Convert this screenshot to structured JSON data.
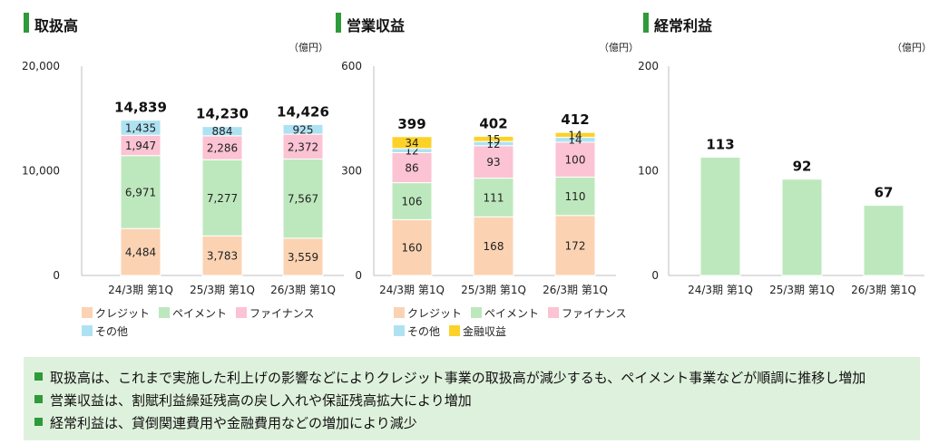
{
  "colors": {
    "credit": "#fbd3b3",
    "payment": "#bde8bd",
    "finance": "#fbc3d3",
    "other": "#aee2f2",
    "kinyu": "#fcd229",
    "ordinary": "#bde8bd",
    "axis": "#bfbfbf",
    "accent": "#2e9a3a"
  },
  "panels": [
    {
      "title": "取扱高",
      "unit": "（億円）"
    },
    {
      "title": "営業収益",
      "unit": "（億円）"
    },
    {
      "title": "経常利益",
      "unit": "（億円）"
    }
  ],
  "chart_data": [
    {
      "type": "bar",
      "stacked": true,
      "title": "取扱高",
      "unit": "（億円）",
      "categories": [
        "24/3期 第1Q",
        "25/3期 第1Q",
        "26/3期 第1Q"
      ],
      "ylim": [
        0,
        20000
      ],
      "yticks": [
        "0",
        "10,000",
        "20,000"
      ],
      "totals": [
        "14,839",
        "14,230",
        "14,426"
      ],
      "series": [
        {
          "name": "クレジット",
          "key": "credit",
          "values": [
            4484,
            3783,
            3559
          ],
          "labels": [
            "4,484",
            "3,783",
            "3,559"
          ]
        },
        {
          "name": "ペイメント",
          "key": "payment",
          "values": [
            6971,
            7277,
            7567
          ],
          "labels": [
            "6,971",
            "7,277",
            "7,567"
          ]
        },
        {
          "name": "ファイナンス",
          "key": "finance",
          "values": [
            1947,
            2286,
            2372
          ],
          "labels": [
            "1,947",
            "2,286",
            "2,372"
          ]
        },
        {
          "name": "その他",
          "key": "other",
          "values": [
            1435,
            884,
            925
          ],
          "labels": [
            "1,435",
            "884",
            "925"
          ]
        }
      ],
      "legend": "bottom",
      "grid": false
    },
    {
      "type": "bar",
      "stacked": true,
      "title": "営業収益",
      "unit": "（億円）",
      "categories": [
        "24/3期 第1Q",
        "25/3期 第1Q",
        "26/3期 第1Q"
      ],
      "ylim": [
        0,
        600
      ],
      "yticks": [
        "0",
        "300",
        "600"
      ],
      "totals": [
        "399",
        "402",
        "412"
      ],
      "series": [
        {
          "name": "クレジット",
          "key": "credit",
          "values": [
            160,
            168,
            172
          ],
          "labels": [
            "160",
            "168",
            "172"
          ]
        },
        {
          "name": "ペイメント",
          "key": "payment",
          "values": [
            106,
            111,
            110
          ],
          "labels": [
            "106",
            "111",
            "110"
          ]
        },
        {
          "name": "ファイナンス",
          "key": "finance",
          "values": [
            86,
            93,
            100
          ],
          "labels": [
            "86",
            "93",
            "100"
          ]
        },
        {
          "name": "その他",
          "key": "other",
          "values": [
            12,
            12,
            14
          ],
          "labels": [
            "12",
            "12",
            "14"
          ]
        },
        {
          "name": "金融収益",
          "key": "kinyu",
          "values": [
            34,
            15,
            14
          ],
          "labels": [
            "34",
            "15",
            "14"
          ]
        }
      ],
      "legend": "bottom",
      "grid": false
    },
    {
      "type": "bar",
      "stacked": false,
      "title": "経常利益",
      "unit": "（億円）",
      "categories": [
        "24/3期 第1Q",
        "25/3期 第1Q",
        "26/3期 第1Q"
      ],
      "ylim": [
        0,
        200
      ],
      "yticks": [
        "0",
        "100",
        "200"
      ],
      "totals": [
        "113",
        "92",
        "67"
      ],
      "series": [
        {
          "key": "ordinary",
          "values": [
            113,
            92,
            67
          ],
          "labels": []
        }
      ],
      "legend": "none",
      "grid": false
    }
  ],
  "legends": {
    "handling": [
      [
        {
          "key": "credit",
          "label": "クレジット"
        },
        {
          "key": "payment",
          "label": "ペイメント"
        },
        {
          "key": "finance",
          "label": "ファイナンス"
        }
      ],
      [
        {
          "key": "other",
          "label": "その他"
        }
      ]
    ],
    "revenue": [
      [
        {
          "key": "credit",
          "label": "クレジット"
        },
        {
          "key": "payment",
          "label": "ペイメント"
        },
        {
          "key": "finance",
          "label": "ファイナンス"
        }
      ],
      [
        {
          "key": "other",
          "label": "その他"
        },
        {
          "key": "kinyu",
          "label": "金融収益"
        }
      ]
    ]
  },
  "notes": [
    "取扱高は、これまで実施した利上げの影響などによりクレジット事業の取扱高が減少するも、ペイメント事業などが順調に推移し増加",
    "営業収益は、割賦利益繰延残高の戻し入れや保証残高拡大により増加",
    "経常利益は、貸倒関連費用や金融費用などの増加により減少"
  ]
}
